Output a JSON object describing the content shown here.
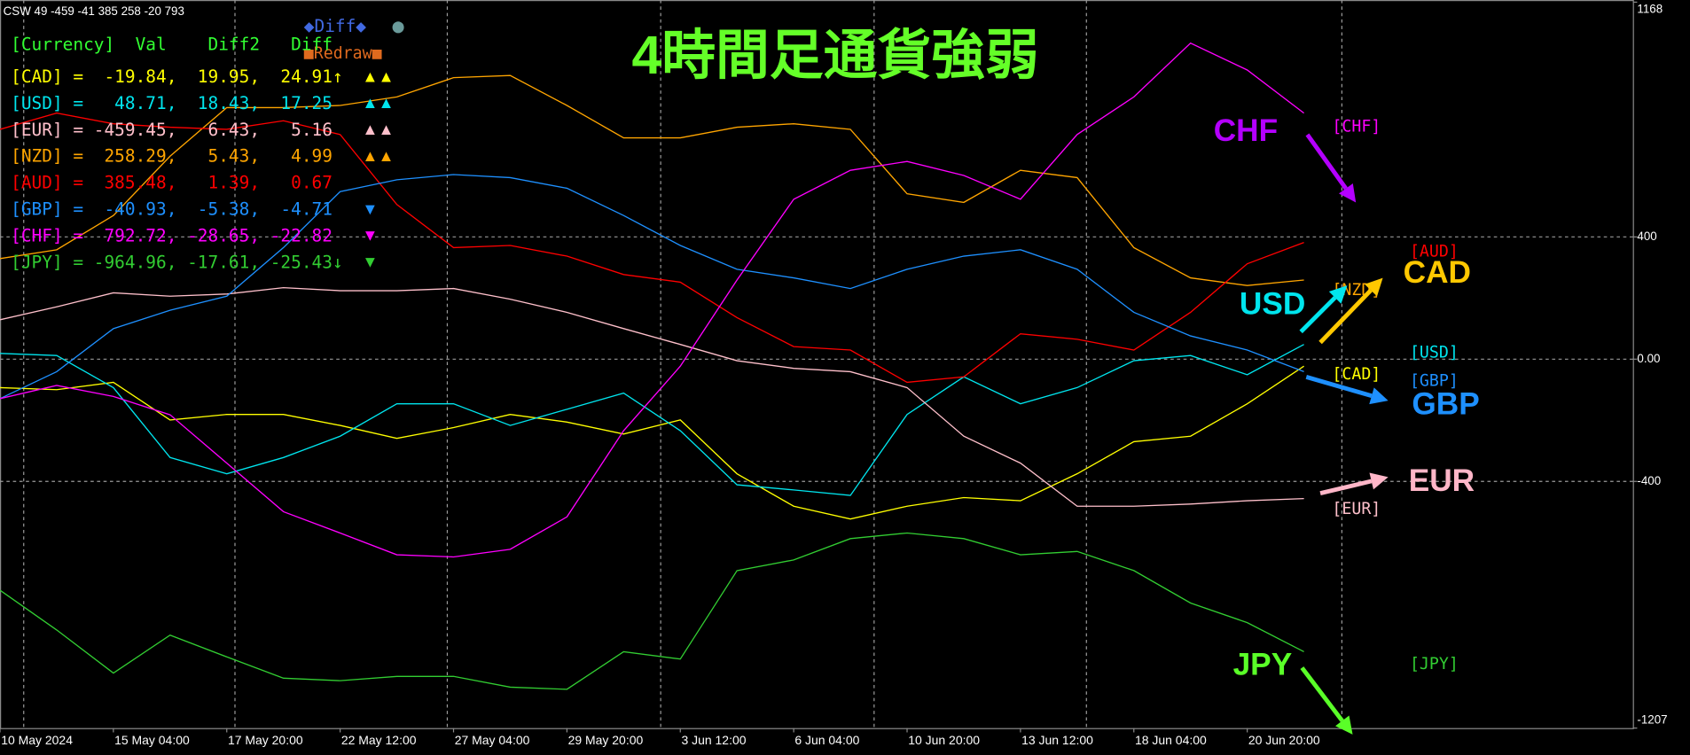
{
  "chart_data": {
    "type": "line",
    "title": "4時間足通貨強弱",
    "info": "CSW 49 -459 -41 385 258 -20 793",
    "categories": [
      "10 May 2024",
      null,
      "15 May 04:00",
      null,
      "17 May 20:00",
      null,
      "22 May 12:00",
      null,
      "27 May 04:00",
      null,
      "29 May 20:00",
      null,
      "3 Jun 12:00",
      null,
      "6 Jun 04:00",
      null,
      "10 Jun 20:00",
      null,
      "13 Jun 12:00",
      null,
      "18 Jun 04:00",
      null,
      "20 Jun 20:00",
      null,
      null,
      null,
      null,
      null,
      null
    ],
    "series": [
      {
        "name": "[CAD]",
        "color": "#ffff00",
        "values": [
          -93,
          -100,
          -76,
          -199,
          -181,
          -181,
          -217,
          -259,
          -224,
          -181,
          -206,
          -245,
          -199,
          -375,
          -481,
          -523,
          -481,
          -453,
          -463,
          -375,
          -270,
          -252,
          -146,
          -23,
          null,
          null,
          null,
          null,
          null
        ]
      },
      {
        "name": "[USD]",
        "color": "#00e5ee",
        "values": [
          19,
          12,
          -93,
          -322,
          -375,
          -322,
          -252,
          -146,
          -146,
          -217,
          -164,
          -111,
          -234,
          -411,
          -428,
          -446,
          -181,
          -58,
          -146,
          -93,
          -5,
          12,
          -51,
          48,
          null,
          null,
          null,
          null,
          null
        ]
      },
      {
        "name": "[EUR]",
        "color": "#ffc0cb",
        "values": [
          129,
          171,
          217,
          206,
          213,
          234,
          224,
          224,
          231,
          196,
          153,
          100,
          48,
          -5,
          -30,
          -41,
          -93,
          -252,
          -340,
          -481,
          -481,
          -474,
          -463,
          -456,
          null,
          null,
          null,
          null,
          null
        ]
      },
      {
        "name": "[NZD]",
        "color": "#ffa500",
        "values": [
          329,
          358,
          470,
          664,
          823,
          823,
          830,
          858,
          921,
          928,
          830,
          724,
          724,
          759,
          770,
          752,
          541,
          513,
          618,
          594,
          365,
          266,
          241,
          259,
          null,
          null,
          null,
          null,
          null
        ]
      },
      {
        "name": "[AUD]",
        "color": "#ff0000",
        "values": [
          752,
          805,
          770,
          759,
          752,
          780,
          735,
          506,
          365,
          372,
          337,
          277,
          252,
          136,
          41,
          30,
          -76,
          -58,
          83,
          65,
          30,
          153,
          312,
          382,
          null,
          null,
          null,
          null,
          null
        ]
      },
      {
        "name": "[GBP]",
        "color": "#1e90ff",
        "values": [
          -129,
          -41,
          100,
          160,
          206,
          365,
          548,
          587,
          604,
          594,
          559,
          470,
          372,
          294,
          266,
          231,
          294,
          337,
          358,
          294,
          153,
          76,
          30,
          -41,
          null,
          null,
          null,
          null,
          null
        ]
      },
      {
        "name": "[CHF]",
        "color": "#ff00ff",
        "values": [
          -129,
          -86,
          -122,
          -182,
          -340,
          -499,
          -569,
          -640,
          -647,
          -622,
          -516,
          -234,
          -23,
          259,
          523,
          618,
          647,
          601,
          523,
          735,
          858,
          1034,
          946,
          805,
          null,
          null,
          null,
          null,
          null
        ]
      },
      {
        "name": "[JPY]",
        "color": "#32cd32",
        "values": [
          -756,
          -886,
          -1027,
          -903,
          -974,
          -1044,
          -1052,
          -1038,
          -1038,
          -1073,
          -1080,
          -957,
          -981,
          -692,
          -657,
          -587,
          -569,
          -587,
          -640,
          -629,
          -692,
          -798,
          -862,
          -957,
          null,
          null,
          null,
          null,
          null
        ]
      }
    ],
    "ylim": [
      -1207,
      1168
    ],
    "yticks": [
      1168,
      400,
      {
        "value": 0,
        "label": "0.00"
      },
      -400,
      -1207
    ],
    "grid": true,
    "table": {
      "header": "[Currency]  Val    Diff2   Diff",
      "rows": [
        {
          "text": "[CAD] =  -19.84,  19.95,  24.91↑",
          "signal": "▲▲"
        },
        {
          "text": "[USD] =   48.71,  18.43,  17.25 ",
          "signal": "▲▲"
        },
        {
          "text": "[EUR] = -459.45,   6.43,   5.16 ",
          "signal": "▲▲"
        },
        {
          "text": "[NZD] =  258.29,   5.43,   4.99 ",
          "signal": "▲▲"
        },
        {
          "text": "[AUD] =  385.48,   1.39,   0.67 ",
          "signal": ""
        },
        {
          "text": "[GBP] =  -40.93,  -5.38,  -4.71 ",
          "signal": "▼"
        },
        {
          "text": "[CHF] =  792.72, -28.65, -22.82 ",
          "signal": "▼"
        },
        {
          "text": "[JPY] = -964.96, -17.61, -25.43↓",
          "signal": "▼"
        }
      ]
    },
    "buttons": {
      "diff": "◆Diff◆",
      "dot": "●",
      "redraw": "■Redraw■"
    },
    "annotations": [
      {
        "text": "CHF",
        "color": "#b400ff"
      },
      {
        "text": "USD",
        "color": "#00e5ee"
      },
      {
        "text": "CAD",
        "color": "#ffc800"
      },
      {
        "text": "GBP",
        "color": "#1e90ff"
      },
      {
        "text": "EUR",
        "color": "#ffb6c8"
      },
      {
        "text": "JPY",
        "color": "#5aff28"
      }
    ]
  }
}
